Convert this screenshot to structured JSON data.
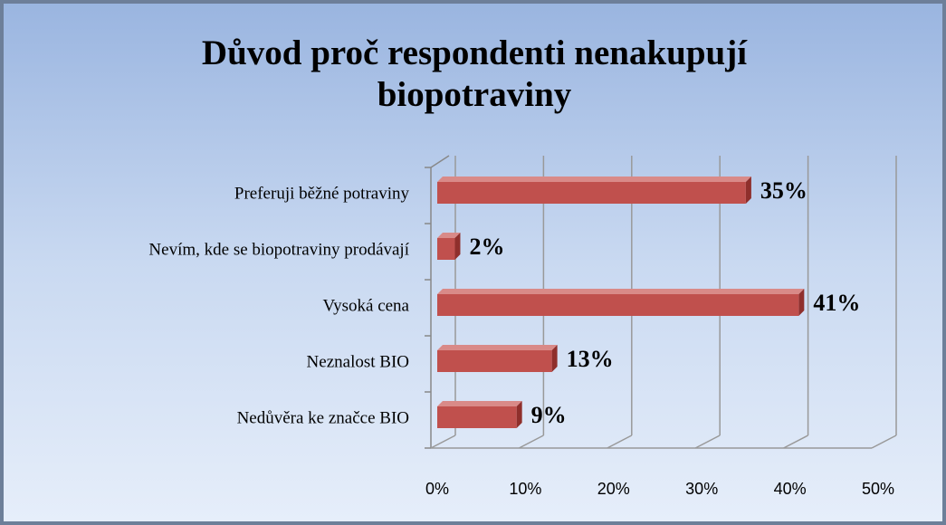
{
  "chart_data": {
    "type": "bar",
    "orientation": "horizontal",
    "title": "Důvod proč respondenti nenakupují biopotraviny",
    "categories": [
      "Preferuji běžné potraviny",
      "Nevím, kde se biopotraviny prodávají",
      "Vysoká cena",
      "Neznalost BIO",
      "Nedůvěra ke značce BIO"
    ],
    "values": [
      35,
      2,
      41,
      13,
      9
    ],
    "value_labels": [
      "35%",
      "2%",
      "41%",
      "13%",
      "9%"
    ],
    "color": "#c0504d",
    "xlim": [
      0,
      50
    ],
    "xticks": [
      {
        "value": 0,
        "label": "0%"
      },
      {
        "value": 10,
        "label": "10%"
      },
      {
        "value": 20,
        "label": "20%"
      },
      {
        "value": 30,
        "label": "30%"
      },
      {
        "value": 40,
        "label": "40%"
      },
      {
        "value": 50,
        "label": "50%"
      }
    ],
    "grid": true
  }
}
